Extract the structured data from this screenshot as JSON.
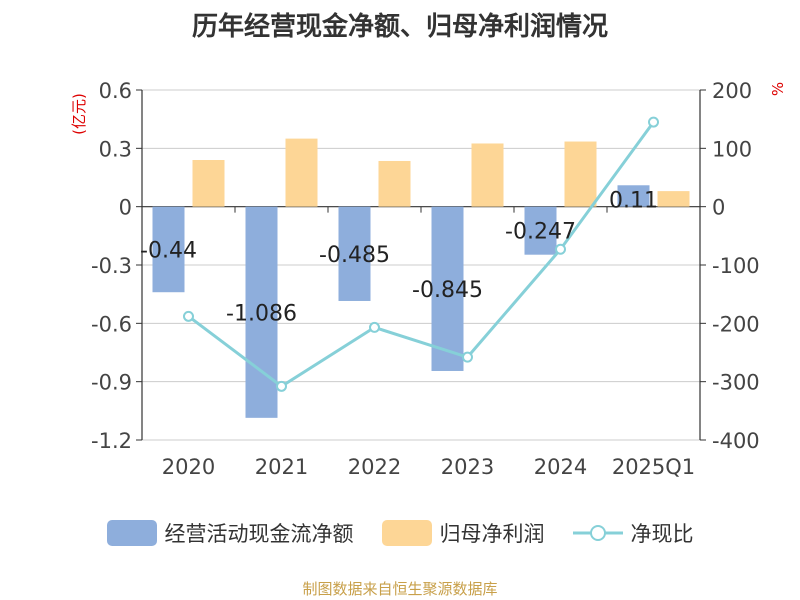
{
  "title": "历年经营现金净额、归母净利润情况",
  "left_unit": "(亿元)",
  "right_unit": "%",
  "source": "制图数据来自恒生聚源数据库",
  "legend": {
    "cash": "经营活动现金流净额",
    "profit": "归母净利润",
    "ratio": "净现比"
  },
  "colors": {
    "cash": "#8eaedc",
    "profit": "#fdd696",
    "ratio": "#86d0d8"
  },
  "chart_data": {
    "type": "bar",
    "categories": [
      "2020",
      "2021",
      "2022",
      "2023",
      "2024",
      "2025Q1"
    ],
    "series": [
      {
        "name": "经营活动现金流净额",
        "axis": "left",
        "type": "bar",
        "values": [
          -0.44,
          -1.086,
          -0.485,
          -0.845,
          -0.247,
          0.11
        ],
        "labels": [
          "-0.44",
          "-1.086",
          "-0.485",
          "-0.845",
          "-0.247",
          "0.11"
        ]
      },
      {
        "name": "归母净利润",
        "axis": "left",
        "type": "bar",
        "values": [
          0.24,
          0.35,
          0.235,
          0.325,
          0.335,
          0.08
        ]
      },
      {
        "name": "净现比",
        "axis": "right",
        "type": "line",
        "values": [
          -188,
          -308,
          -207,
          -258,
          -73,
          145
        ]
      }
    ],
    "left_axis": {
      "min": -1.2,
      "max": 0.6,
      "ticks": [
        0.6,
        0.3,
        0,
        -0.3,
        -0.6,
        -0.9,
        -1.2
      ],
      "tick_labels": [
        "0.6",
        "0.3",
        "0",
        "-0.3",
        "-0.6",
        "-0.9",
        "-1.2"
      ]
    },
    "right_axis": {
      "min": -400,
      "max": 200,
      "ticks": [
        200,
        100,
        0,
        -100,
        -200,
        -300,
        -400
      ],
      "tick_labels": [
        "200",
        "100",
        "0",
        "-100",
        "-200",
        "-300",
        "-400"
      ]
    }
  }
}
